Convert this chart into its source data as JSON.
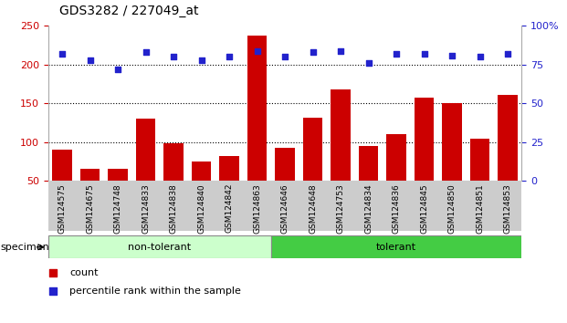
{
  "title": "GDS3282 / 227049_at",
  "categories": [
    "GSM124575",
    "GSM124675",
    "GSM124748",
    "GSM124833",
    "GSM124838",
    "GSM124840",
    "GSM124842",
    "GSM124863",
    "GSM124646",
    "GSM124648",
    "GSM124753",
    "GSM124834",
    "GSM124836",
    "GSM124845",
    "GSM124850",
    "GSM124851",
    "GSM124853"
  ],
  "counts": [
    90,
    65,
    65,
    130,
    98,
    75,
    82,
    238,
    93,
    132,
    168,
    95,
    110,
    157,
    150,
    105,
    161
  ],
  "percentile_ranks": [
    82,
    78,
    72,
    83,
    80,
    78,
    80,
    84,
    80,
    83,
    84,
    76,
    82,
    82,
    81,
    80,
    82
  ],
  "non_tolerant_count": 8,
  "tolerant_count": 9,
  "bar_color": "#cc0000",
  "dot_color": "#2222cc",
  "non_tolerant_color": "#ccffcc",
  "tolerant_color": "#44cc44",
  "left_ylim": [
    50,
    250
  ],
  "left_yticks": [
    50,
    100,
    150,
    200,
    250
  ],
  "right_ylim": [
    0,
    100
  ],
  "right_yticks": [
    0,
    25,
    50,
    75,
    100
  ],
  "right_yticklabels": [
    "0",
    "25",
    "50",
    "75",
    "100%"
  ],
  "grid_values": [
    100,
    150,
    200
  ],
  "bg_color": "#ffffff"
}
